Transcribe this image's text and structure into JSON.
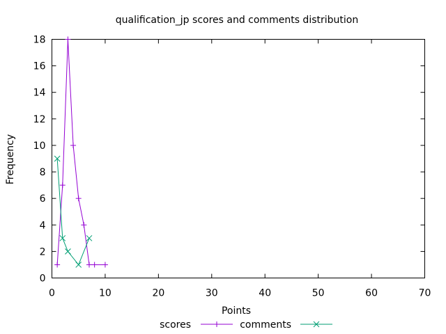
{
  "chart_data": {
    "type": "line",
    "title": "qualification_jp scores and comments distribution",
    "xlabel": "Points",
    "ylabel": "Frequency",
    "xlim": [
      0,
      70
    ],
    "ylim": [
      0,
      18
    ],
    "xticks": [
      0,
      10,
      20,
      30,
      40,
      50,
      60,
      70
    ],
    "yticks": [
      0,
      2,
      4,
      6,
      8,
      10,
      12,
      14,
      16,
      18
    ],
    "grid": false,
    "legend_position": "bottom-center",
    "series": [
      {
        "name": "scores",
        "color": "#9400d3",
        "marker": "plus",
        "points": [
          [
            1,
            1
          ],
          [
            2,
            7
          ],
          [
            3,
            18
          ],
          [
            4,
            10
          ],
          [
            5,
            6
          ],
          [
            6,
            4
          ],
          [
            7,
            1
          ],
          [
            8,
            1
          ],
          [
            10,
            1
          ]
        ]
      },
      {
        "name": "comments",
        "color": "#009e73",
        "marker": "cross",
        "points": [
          [
            1,
            9
          ],
          [
            2,
            3
          ],
          [
            3,
            2
          ],
          [
            5,
            1
          ],
          [
            7,
            3
          ]
        ]
      }
    ]
  }
}
